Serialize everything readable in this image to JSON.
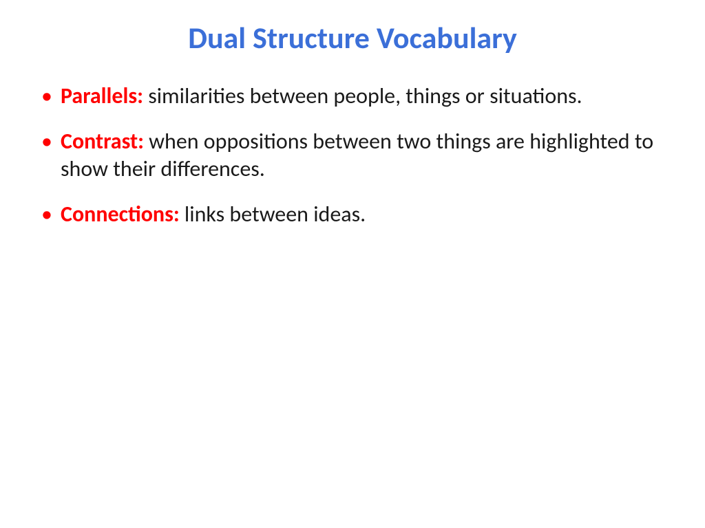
{
  "slide": {
    "title": "Dual Structure Vocabulary",
    "title_color": "#3b6fd8",
    "title_fontsize": 44,
    "bullet_marker_color": "#ff0000",
    "term_color": "#ff0000",
    "definition_color": "#1a1a1a",
    "body_fontsize": 32,
    "background_color": "#ffffff",
    "items": [
      {
        "term": "Parallels:",
        "definition": " similarities between people, things or situations."
      },
      {
        "term": "Contrast:",
        "definition": " when oppositions between two things are highlighted to show their differences."
      },
      {
        "term": "Connections:",
        "definition": " links between ideas."
      }
    ]
  }
}
